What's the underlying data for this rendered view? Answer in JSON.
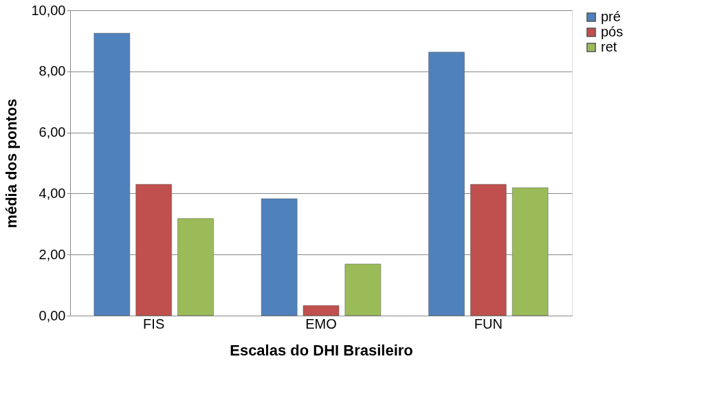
{
  "chart_data": {
    "type": "bar",
    "xlabel": "Escalas do DHI Brasileiro",
    "ylabel": "média dos pontos",
    "categories": [
      "FIS",
      "EMO",
      "FUN"
    ],
    "series": [
      {
        "name": "pré",
        "color": "#4f81bd",
        "values": [
          9.25,
          3.83,
          8.63
        ]
      },
      {
        "name": "pós",
        "color": "#c0504d",
        "values": [
          4.3,
          0.33,
          4.3
        ]
      },
      {
        "name": "ret",
        "color": "#9bbb59",
        "values": [
          3.18,
          1.69,
          4.19
        ]
      }
    ],
    "ylim": [
      0,
      10
    ],
    "yticks": [
      {
        "value": 0,
        "label": "0,00"
      },
      {
        "value": 2,
        "label": "2,00"
      },
      {
        "value": 4,
        "label": "4,00"
      },
      {
        "value": 6,
        "label": "6,00"
      },
      {
        "value": 8,
        "label": "8,00"
      },
      {
        "value": 10,
        "label": "10,00"
      }
    ],
    "grid": "y",
    "legend": "right"
  }
}
